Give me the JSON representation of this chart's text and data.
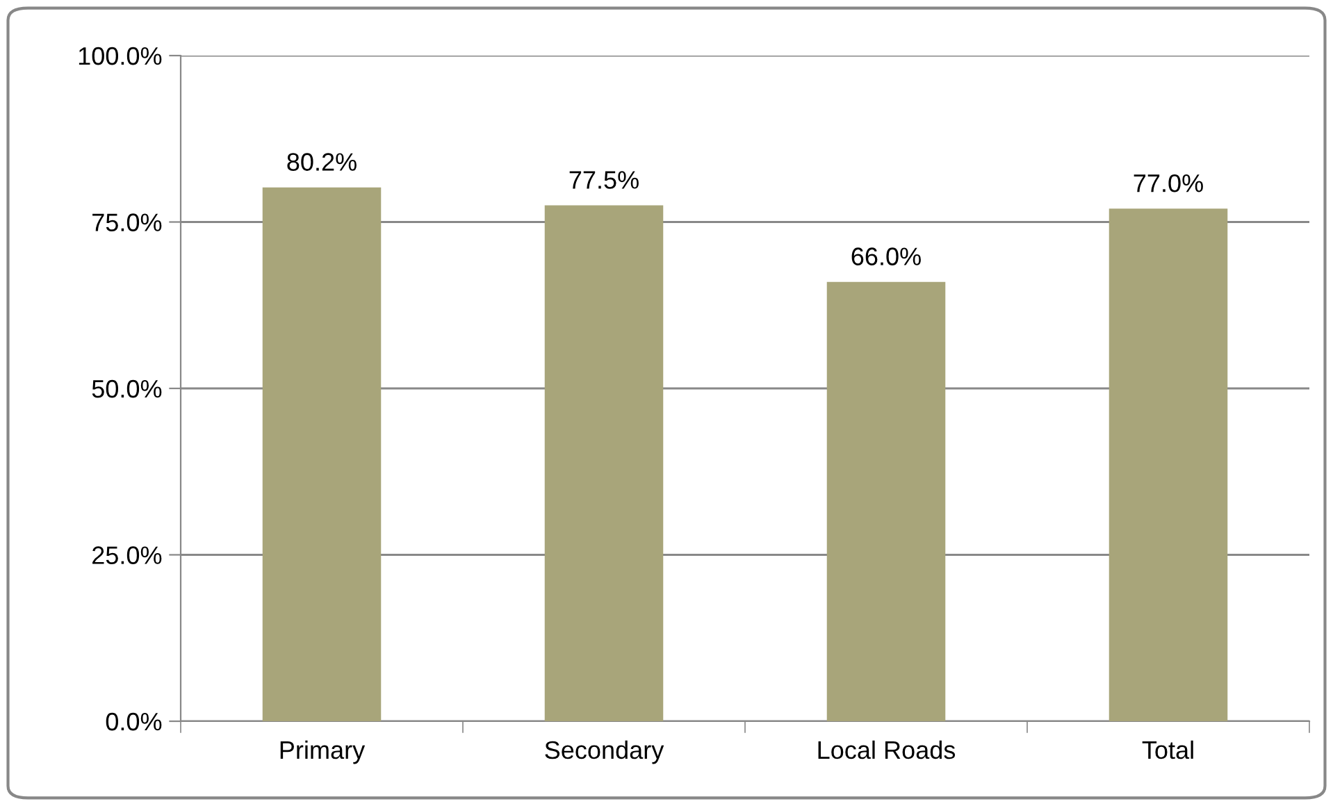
{
  "chart_data": {
    "type": "bar",
    "categories": [
      "Primary",
      "Secondary",
      "Local Roads",
      "Total"
    ],
    "values": [
      80.2,
      77.5,
      66.0,
      77.0
    ],
    "value_labels": [
      "80.2%",
      "77.5%",
      "66.0%",
      "77.0%"
    ],
    "color": "#a8a57a",
    "ylim": [
      0,
      100
    ],
    "yticks": [
      {
        "value": 0,
        "label": "0.0%"
      },
      {
        "value": 25,
        "label": "25.0%"
      },
      {
        "value": 50,
        "label": "50.0%"
      },
      {
        "value": 75,
        "label": "75.0%"
      },
      {
        "value": 100,
        "label": "100.0%"
      }
    ],
    "grid": "y"
  }
}
